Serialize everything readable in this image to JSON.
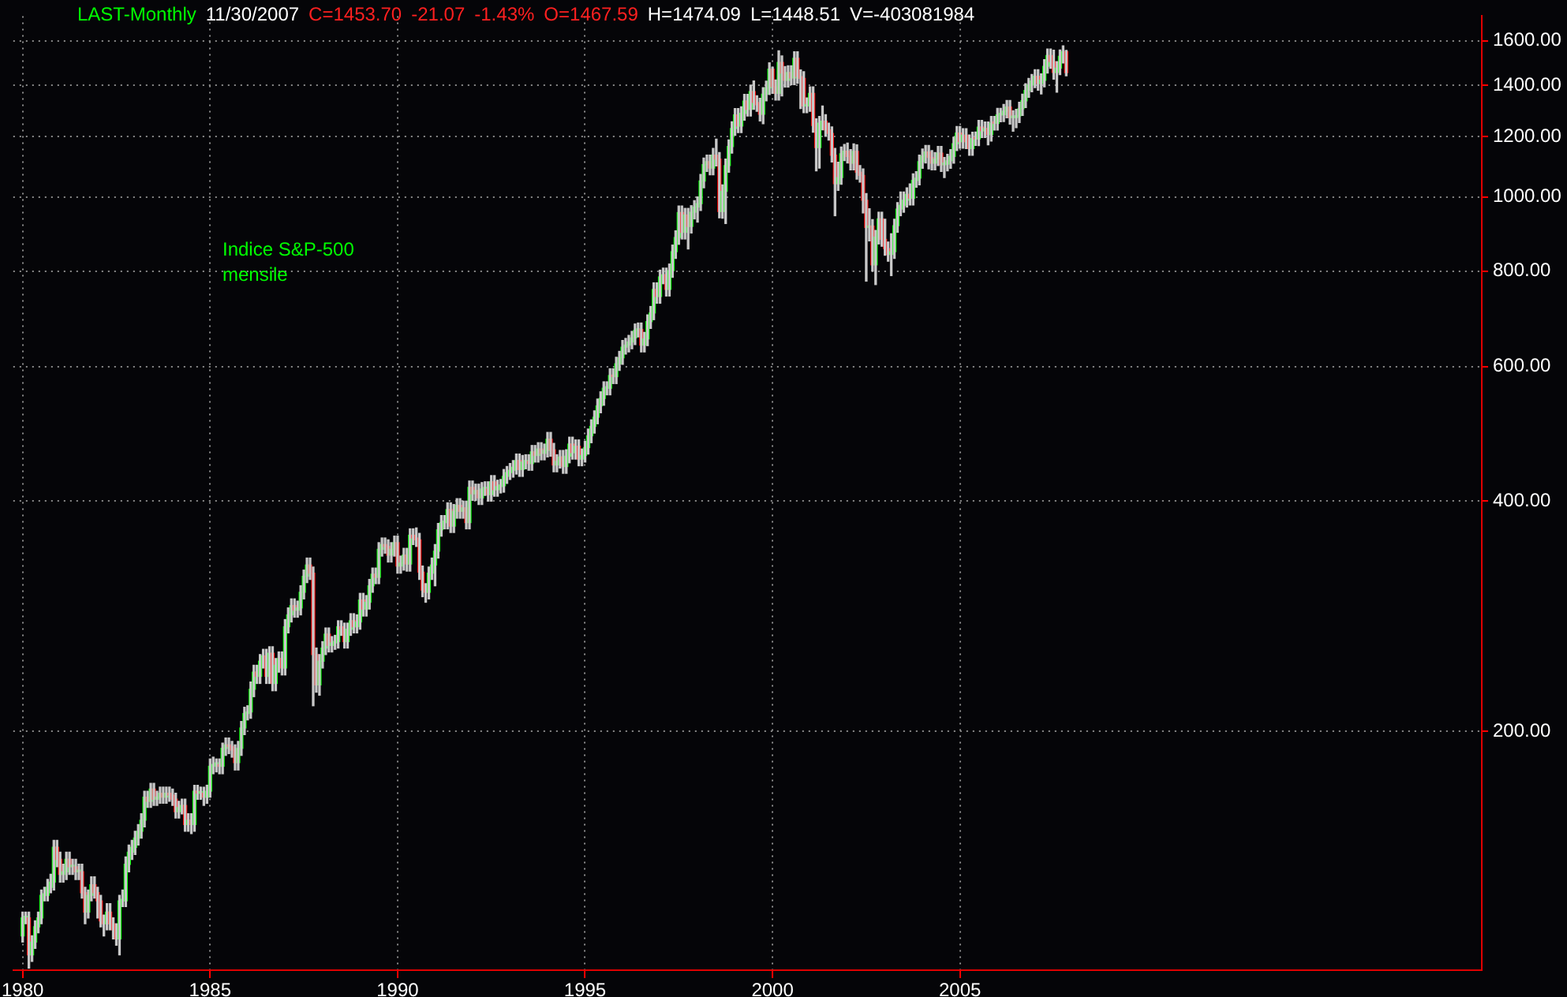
{
  "chart_data": {
    "type": "candlestick",
    "title": "Indice S&P-500\nmensile",
    "annotations": [
      "LAST-Monthly",
      "11/30/2007",
      "C=1453.70",
      "-21.07",
      "-1.43%",
      "O=1467.59",
      "H=1474.09",
      "L=1448.51",
      "V=-403081984"
    ],
    "log": true,
    "grid": true,
    "xlim": [
      "1979-10",
      "2018-12"
    ],
    "xticks": [
      "1980",
      "1985",
      "1990",
      "1995",
      "2000",
      "2005"
    ],
    "ylim": [
      97.4,
      1724
    ],
    "yticks": [
      {
        "value": 200,
        "label": "200.00"
      },
      {
        "value": 400,
        "label": "400.00"
      },
      {
        "value": 600,
        "label": "600.00"
      },
      {
        "value": 800,
        "label": "800.00"
      },
      {
        "value": 1000,
        "label": "1000.00"
      },
      {
        "value": 1200,
        "label": "1200.00"
      },
      {
        "value": 1400,
        "label": "1400.00"
      },
      {
        "value": 1600,
        "label": "1600.00"
      }
    ],
    "x": [
      "1980-01",
      "1980-02",
      "1980-03",
      "1980-04",
      "1980-05",
      "1980-06",
      "1980-07",
      "1980-08",
      "1980-09",
      "1980-10",
      "1980-11",
      "1980-12",
      "1981-01",
      "1981-02",
      "1981-03",
      "1981-04",
      "1981-05",
      "1981-06",
      "1981-07",
      "1981-08",
      "1981-09",
      "1981-10",
      "1981-11",
      "1981-12",
      "1982-01",
      "1982-02",
      "1982-03",
      "1982-04",
      "1982-05",
      "1982-06",
      "1982-07",
      "1982-08",
      "1982-09",
      "1982-10",
      "1982-11",
      "1982-12",
      "1983-01",
      "1983-02",
      "1983-03",
      "1983-04",
      "1983-05",
      "1983-06",
      "1983-07",
      "1983-08",
      "1983-09",
      "1983-10",
      "1983-11",
      "1983-12",
      "1984-01",
      "1984-02",
      "1984-03",
      "1984-04",
      "1984-05",
      "1984-06",
      "1984-07",
      "1984-08",
      "1984-09",
      "1984-10",
      "1984-11",
      "1984-12",
      "1985-01",
      "1985-02",
      "1985-03",
      "1985-04",
      "1985-05",
      "1985-06",
      "1985-07",
      "1985-08",
      "1985-09",
      "1985-10",
      "1985-11",
      "1985-12",
      "1986-01",
      "1986-02",
      "1986-03",
      "1986-04",
      "1986-05",
      "1986-06",
      "1986-07",
      "1986-08",
      "1986-09",
      "1986-10",
      "1986-11",
      "1986-12",
      "1987-01",
      "1987-02",
      "1987-03",
      "1987-04",
      "1987-05",
      "1987-06",
      "1987-07",
      "1987-08",
      "1987-09",
      "1987-10",
      "1987-11",
      "1987-12",
      "1988-01",
      "1988-02",
      "1988-03",
      "1988-04",
      "1988-05",
      "1988-06",
      "1988-07",
      "1988-08",
      "1988-09",
      "1988-10",
      "1988-11",
      "1988-12",
      "1989-01",
      "1989-02",
      "1989-03",
      "1989-04",
      "1989-05",
      "1989-06",
      "1989-07",
      "1989-08",
      "1989-09",
      "1989-10",
      "1989-11",
      "1989-12",
      "1990-01",
      "1990-02",
      "1990-03",
      "1990-04",
      "1990-05",
      "1990-06",
      "1990-07",
      "1990-08",
      "1990-09",
      "1990-10",
      "1990-11",
      "1990-12",
      "1991-01",
      "1991-02",
      "1991-03",
      "1991-04",
      "1991-05",
      "1991-06",
      "1991-07",
      "1991-08",
      "1991-09",
      "1991-10",
      "1991-11",
      "1991-12",
      "1992-01",
      "1992-02",
      "1992-03",
      "1992-04",
      "1992-05",
      "1992-06",
      "1992-07",
      "1992-08",
      "1992-09",
      "1992-10",
      "1992-11",
      "1992-12",
      "1993-01",
      "1993-02",
      "1993-03",
      "1993-04",
      "1993-05",
      "1993-06",
      "1993-07",
      "1993-08",
      "1993-09",
      "1993-10",
      "1993-11",
      "1993-12",
      "1994-01",
      "1994-02",
      "1994-03",
      "1994-04",
      "1994-05",
      "1994-06",
      "1994-07",
      "1994-08",
      "1994-09",
      "1994-10",
      "1994-11",
      "1994-12",
      "1995-01",
      "1995-02",
      "1995-03",
      "1995-04",
      "1995-05",
      "1995-06",
      "1995-07",
      "1995-08",
      "1995-09",
      "1995-10",
      "1995-11",
      "1995-12",
      "1996-01",
      "1996-02",
      "1996-03",
      "1996-04",
      "1996-05",
      "1996-06",
      "1996-07",
      "1996-08",
      "1996-09",
      "1996-10",
      "1996-11",
      "1996-12",
      "1997-01",
      "1997-02",
      "1997-03",
      "1997-04",
      "1997-05",
      "1997-06",
      "1997-07",
      "1997-08",
      "1997-09",
      "1997-10",
      "1997-11",
      "1997-12",
      "1998-01",
      "1998-02",
      "1998-03",
      "1998-04",
      "1998-05",
      "1998-06",
      "1998-07",
      "1998-08",
      "1998-09",
      "1998-10",
      "1998-11",
      "1998-12",
      "1999-01",
      "1999-02",
      "1999-03",
      "1999-04",
      "1999-05",
      "1999-06",
      "1999-07",
      "1999-08",
      "1999-09",
      "1999-10",
      "1999-11",
      "1999-12",
      "2000-01",
      "2000-02",
      "2000-03",
      "2000-04",
      "2000-05",
      "2000-06",
      "2000-07",
      "2000-08",
      "2000-09",
      "2000-10",
      "2000-11",
      "2000-12",
      "2001-01",
      "2001-02",
      "2001-03",
      "2001-04",
      "2001-05",
      "2001-06",
      "2001-07",
      "2001-08",
      "2001-09",
      "2001-10",
      "2001-11",
      "2001-12",
      "2002-01",
      "2002-02",
      "2002-03",
      "2002-04",
      "2002-05",
      "2002-06",
      "2002-07",
      "2002-08",
      "2002-09",
      "2002-10",
      "2002-11",
      "2002-12",
      "2003-01",
      "2003-02",
      "2003-03",
      "2003-04",
      "2003-05",
      "2003-06",
      "2003-07",
      "2003-08",
      "2003-09",
      "2003-10",
      "2003-11",
      "2003-12",
      "2004-01",
      "2004-02",
      "2004-03",
      "2004-04",
      "2004-05",
      "2004-06",
      "2004-07",
      "2004-08",
      "2004-09",
      "2004-10",
      "2004-11",
      "2004-12",
      "2005-01",
      "2005-02",
      "2005-03",
      "2005-04",
      "2005-05",
      "2005-06",
      "2005-07",
      "2005-08",
      "2005-09",
      "2005-10",
      "2005-11",
      "2005-12",
      "2006-01",
      "2006-02",
      "2006-03",
      "2006-04",
      "2006-05",
      "2006-06",
      "2006-07",
      "2006-08",
      "2006-09",
      "2006-10",
      "2006-11",
      "2006-12",
      "2007-01",
      "2007-02",
      "2007-03",
      "2007-04",
      "2007-05",
      "2007-06",
      "2007-07",
      "2007-08",
      "2007-09",
      "2007-10",
      "2007-11"
    ],
    "ohlc": [
      [
        108,
        116,
        106,
        114
      ],
      [
        114,
        116,
        112,
        114
      ],
      [
        114,
        116,
        98,
        102
      ],
      [
        102,
        108,
        100,
        106
      ],
      [
        106,
        113,
        104,
        111
      ],
      [
        111,
        116,
        109,
        114
      ],
      [
        114,
        124,
        112,
        122
      ],
      [
        122,
        125,
        120,
        122
      ],
      [
        122,
        128,
        120,
        125
      ],
      [
        125,
        130,
        123,
        127
      ],
      [
        127,
        144,
        124,
        141
      ],
      [
        141,
        144,
        133,
        136
      ],
      [
        136,
        139,
        127,
        130
      ],
      [
        130,
        134,
        127,
        131
      ],
      [
        131,
        139,
        128,
        136
      ],
      [
        136,
        139,
        130,
        133
      ],
      [
        133,
        136,
        130,
        133
      ],
      [
        133,
        136,
        128,
        131
      ],
      [
        131,
        134,
        128,
        131
      ],
      [
        131,
        134,
        121,
        123
      ],
      [
        123,
        125,
        112,
        116
      ],
      [
        116,
        124,
        114,
        122
      ],
      [
        122,
        129,
        120,
        126
      ],
      [
        126,
        129,
        121,
        123
      ],
      [
        123,
        125,
        114,
        120
      ],
      [
        120,
        122,
        111,
        113
      ],
      [
        113,
        115,
        108,
        112
      ],
      [
        112,
        119,
        110,
        116
      ],
      [
        116,
        119,
        110,
        112
      ],
      [
        112,
        114,
        107,
        110
      ],
      [
        110,
        112,
        105,
        107
      ],
      [
        107,
        122,
        102,
        120
      ],
      [
        120,
        124,
        118,
        120
      ],
      [
        120,
        137,
        118,
        134
      ],
      [
        134,
        142,
        131,
        139
      ],
      [
        139,
        144,
        136,
        141
      ],
      [
        141,
        148,
        138,
        145
      ],
      [
        145,
        151,
        142,
        148
      ],
      [
        148,
        156,
        145,
        153
      ],
      [
        153,
        167,
        150,
        164
      ],
      [
        164,
        167,
        159,
        162
      ],
      [
        162,
        171,
        159,
        168
      ],
      [
        168,
        171,
        160,
        163
      ],
      [
        163,
        167,
        160,
        164
      ],
      [
        164,
        169,
        161,
        166
      ],
      [
        166,
        169,
        161,
        164
      ],
      [
        164,
        169,
        161,
        166
      ],
      [
        166,
        169,
        162,
        165
      ],
      [
        165,
        168,
        160,
        163
      ],
      [
        163,
        166,
        154,
        157
      ],
      [
        157,
        162,
        154,
        159
      ],
      [
        159,
        163,
        156,
        160
      ],
      [
        160,
        163,
        148,
        151
      ],
      [
        151,
        156,
        148,
        153
      ],
      [
        153,
        156,
        147,
        151
      ],
      [
        151,
        170,
        148,
        167
      ],
      [
        167,
        170,
        163,
        166
      ],
      [
        166,
        169,
        163,
        166
      ],
      [
        166,
        169,
        160,
        164
      ],
      [
        164,
        170,
        161,
        167
      ],
      [
        167,
        184,
        164,
        180
      ],
      [
        180,
        185,
        176,
        181
      ],
      [
        181,
        184,
        177,
        181
      ],
      [
        181,
        184,
        176,
        180
      ],
      [
        180,
        193,
        176,
        190
      ],
      [
        190,
        196,
        186,
        192
      ],
      [
        192,
        196,
        187,
        191
      ],
      [
        191,
        194,
        185,
        189
      ],
      [
        189,
        192,
        178,
        182
      ],
      [
        182,
        194,
        178,
        190
      ],
      [
        190,
        206,
        186,
        202
      ],
      [
        202,
        215,
        198,
        211
      ],
      [
        211,
        216,
        207,
        212
      ],
      [
        212,
        232,
        208,
        227
      ],
      [
        227,
        244,
        222,
        239
      ],
      [
        239,
        244,
        231,
        236
      ],
      [
        236,
        252,
        231,
        247
      ],
      [
        247,
        256,
        242,
        251
      ],
      [
        251,
        256,
        231,
        236
      ],
      [
        236,
        258,
        231,
        253
      ],
      [
        253,
        258,
        226,
        231
      ],
      [
        231,
        249,
        226,
        244
      ],
      [
        244,
        254,
        239,
        249
      ],
      [
        249,
        254,
        237,
        242
      ],
      [
        242,
        280,
        237,
        274
      ],
      [
        274,
        290,
        269,
        284
      ],
      [
        284,
        298,
        278,
        292
      ],
      [
        292,
        298,
        282,
        288
      ],
      [
        288,
        296,
        282,
        290
      ],
      [
        290,
        310,
        284,
        304
      ],
      [
        304,
        325,
        298,
        319
      ],
      [
        319,
        337,
        313,
        330
      ],
      [
        330,
        337,
        316,
        322
      ],
      [
        322,
        328,
        216,
        252
      ],
      [
        252,
        257,
        225,
        230
      ],
      [
        230,
        252,
        223,
        247
      ],
      [
        247,
        262,
        242,
        257
      ],
      [
        257,
        273,
        252,
        268
      ],
      [
        268,
        273,
        254,
        259
      ],
      [
        259,
        266,
        254,
        261
      ],
      [
        261,
        267,
        256,
        262
      ],
      [
        262,
        279,
        257,
        274
      ],
      [
        274,
        279,
        267,
        272
      ],
      [
        272,
        277,
        257,
        262
      ],
      [
        262,
        277,
        257,
        272
      ],
      [
        272,
        285,
        267,
        279
      ],
      [
        279,
        285,
        269,
        274
      ],
      [
        274,
        284,
        269,
        278
      ],
      [
        278,
        303,
        272,
        297
      ],
      [
        297,
        303,
        283,
        289
      ],
      [
        289,
        301,
        283,
        295
      ],
      [
        295,
        316,
        289,
        310
      ],
      [
        310,
        327,
        304,
        321
      ],
      [
        321,
        327,
        312,
        318
      ],
      [
        318,
        353,
        312,
        346
      ],
      [
        346,
        358,
        339,
        351
      ],
      [
        351,
        358,
        342,
        349
      ],
      [
        349,
        356,
        333,
        340
      ],
      [
        340,
        353,
        333,
        346
      ],
      [
        346,
        360,
        339,
        353
      ],
      [
        353,
        360,
        322,
        329
      ],
      [
        329,
        339,
        322,
        332
      ],
      [
        332,
        347,
        325,
        340
      ],
      [
        340,
        347,
        324,
        331
      ],
      [
        331,
        368,
        324,
        361
      ],
      [
        361,
        368,
        351,
        358
      ],
      [
        358,
        369,
        349,
        356
      ],
      [
        356,
        363,
        316,
        323
      ],
      [
        323,
        329,
        300,
        306
      ],
      [
        306,
        312,
        295,
        304
      ],
      [
        304,
        328,
        298,
        322
      ],
      [
        322,
        337,
        316,
        330
      ],
      [
        330,
        351,
        310,
        344
      ],
      [
        344,
        374,
        337,
        367
      ],
      [
        367,
        383,
        360,
        375
      ],
      [
        375,
        383,
        368,
        375
      ],
      [
        375,
        398,
        368,
        390
      ],
      [
        390,
        398,
        364,
        371
      ],
      [
        371,
        396,
        364,
        388
      ],
      [
        388,
        403,
        380,
        395
      ],
      [
        395,
        403,
        380,
        388
      ],
      [
        388,
        400,
        380,
        392
      ],
      [
        392,
        400,
        368,
        375
      ],
      [
        375,
        425,
        368,
        417
      ],
      [
        417,
        425,
        401,
        409
      ],
      [
        409,
        421,
        401,
        413
      ],
      [
        413,
        421,
        396,
        404
      ],
      [
        404,
        423,
        396,
        415
      ],
      [
        415,
        424,
        407,
        415
      ],
      [
        415,
        424,
        400,
        408
      ],
      [
        408,
        432,
        400,
        424
      ],
      [
        424,
        432,
        406,
        414
      ],
      [
        414,
        426,
        406,
        418
      ],
      [
        418,
        427,
        410,
        419
      ],
      [
        419,
        440,
        411,
        431
      ],
      [
        431,
        444,
        422,
        436
      ],
      [
        436,
        448,
        427,
        439
      ],
      [
        439,
        452,
        430,
        443
      ],
      [
        443,
        461,
        434,
        452
      ],
      [
        452,
        461,
        431,
        440
      ],
      [
        440,
        459,
        431,
        450
      ],
      [
        450,
        460,
        441,
        451
      ],
      [
        451,
        460,
        439,
        448
      ],
      [
        448,
        473,
        439,
        464
      ],
      [
        464,
        473,
        450,
        459
      ],
      [
        459,
        477,
        450,
        468
      ],
      [
        468,
        477,
        453,
        462
      ],
      [
        462,
        475,
        453,
        466
      ],
      [
        466,
        492,
        457,
        482
      ],
      [
        482,
        492,
        458,
        467
      ],
      [
        467,
        476,
        437,
        446
      ],
      [
        446,
        460,
        437,
        451
      ],
      [
        451,
        466,
        442,
        457
      ],
      [
        457,
        466,
        435,
        444
      ],
      [
        444,
        467,
        435,
        458
      ],
      [
        458,
        485,
        449,
        475
      ],
      [
        475,
        485,
        454,
        463
      ],
      [
        463,
        481,
        454,
        472
      ],
      [
        472,
        481,
        445,
        454
      ],
      [
        454,
        468,
        445,
        459
      ],
      [
        459,
        479,
        450,
        470
      ],
      [
        470,
        497,
        461,
        487
      ],
      [
        487,
        511,
        477,
        501
      ],
      [
        501,
        525,
        491,
        515
      ],
      [
        515,
        544,
        505,
        533
      ],
      [
        533,
        556,
        522,
        545
      ],
      [
        545,
        573,
        534,
        562
      ],
      [
        562,
        573,
        551,
        562
      ],
      [
        562,
        596,
        551,
        584
      ],
      [
        584,
        596,
        570,
        582
      ],
      [
        582,
        617,
        570,
        605
      ],
      [
        605,
        628,
        593,
        616
      ],
      [
        616,
        649,
        604,
        636
      ],
      [
        636,
        653,
        623,
        640
      ],
      [
        640,
        659,
        627,
        646
      ],
      [
        646,
        667,
        633,
        654
      ],
      [
        654,
        682,
        641,
        669
      ],
      [
        669,
        684,
        656,
        671
      ],
      [
        671,
        684,
        627,
        640
      ],
      [
        640,
        665,
        627,
        652
      ],
      [
        652,
        701,
        639,
        687
      ],
      [
        687,
        719,
        673,
        705
      ],
      [
        705,
        772,
        691,
        757
      ],
      [
        757,
        772,
        726,
        741
      ],
      [
        741,
        802,
        726,
        786
      ],
      [
        786,
        807,
        770,
        791
      ],
      [
        791,
        807,
        742,
        757
      ],
      [
        757,
        817,
        742,
        801
      ],
      [
        801,
        865,
        785,
        848
      ],
      [
        848,
        903,
        831,
        885
      ],
      [
        885,
        973,
        867,
        954
      ],
      [
        954,
        973,
        881,
        899
      ],
      [
        899,
        966,
        881,
        947
      ],
      [
        947,
        966,
        855,
        915
      ],
      [
        915,
        974,
        897,
        955
      ],
      [
        955,
        989,
        936,
        970
      ],
      [
        970,
        1000,
        927,
        980
      ],
      [
        980,
        1070,
        960,
        1049
      ],
      [
        1049,
        1124,
        1028,
        1102
      ],
      [
        1102,
        1134,
        1080,
        1112
      ],
      [
        1112,
        1134,
        1069,
        1091
      ],
      [
        1091,
        1157,
        1069,
        1134
      ],
      [
        1134,
        1190,
        1098,
        1121
      ],
      [
        1121,
        1143,
        939,
        957
      ],
      [
        957,
        1037,
        938,
        1017
      ],
      [
        1017,
        1121,
        923,
        1099
      ],
      [
        1099,
        1187,
        1077,
        1164
      ],
      [
        1164,
        1254,
        1141,
        1229
      ],
      [
        1229,
        1305,
        1204,
        1280
      ],
      [
        1280,
        1305,
        1214,
        1238
      ],
      [
        1238,
        1312,
        1214,
        1286
      ],
      [
        1286,
        1362,
        1260,
        1335
      ],
      [
        1335,
        1362,
        1276,
        1302
      ],
      [
        1302,
        1400,
        1276,
        1373
      ],
      [
        1373,
        1418,
        1302,
        1329
      ],
      [
        1329,
        1356,
        1294,
        1320
      ],
      [
        1320,
        1346,
        1257,
        1283
      ],
      [
        1283,
        1390,
        1247,
        1363
      ],
      [
        1363,
        1417,
        1336,
        1389
      ],
      [
        1389,
        1498,
        1361,
        1469
      ],
      [
        1469,
        1478,
        1366,
        1394
      ],
      [
        1394,
        1422,
        1339,
        1366
      ],
      [
        1366,
        1553,
        1339,
        1499
      ],
      [
        1499,
        1529,
        1356,
        1452
      ],
      [
        1452,
        1481,
        1392,
        1421
      ],
      [
        1421,
        1484,
        1392,
        1455
      ],
      [
        1455,
        1484,
        1402,
        1431
      ],
      [
        1431,
        1548,
        1402,
        1518
      ],
      [
        1518,
        1548,
        1408,
        1437
      ],
      [
        1437,
        1466,
        1305,
        1429
      ],
      [
        1429,
        1458,
        1289,
        1315
      ],
      [
        1315,
        1347,
        1289,
        1320
      ],
      [
        1320,
        1393,
        1294,
        1366
      ],
      [
        1366,
        1393,
        1215,
        1240
      ],
      [
        1240,
        1265,
        1082,
        1160
      ],
      [
        1160,
        1274,
        1091,
        1249
      ],
      [
        1249,
        1315,
        1224,
        1256
      ],
      [
        1256,
        1281,
        1200,
        1224
      ],
      [
        1224,
        1249,
        1187,
        1211
      ],
      [
        1211,
        1235,
        1111,
        1134
      ],
      [
        1134,
        1157,
        945,
        1041
      ],
      [
        1041,
        1110,
        1020,
        1060
      ],
      [
        1060,
        1162,
        1039,
        1139
      ],
      [
        1139,
        1171,
        1116,
        1148
      ],
      [
        1148,
        1176,
        1108,
        1130
      ],
      [
        1130,
        1153,
        1085,
        1107
      ],
      [
        1107,
        1173,
        1085,
        1147
      ],
      [
        1147,
        1170,
        1055,
        1077
      ],
      [
        1077,
        1099,
        1046,
        1067
      ],
      [
        1067,
        1088,
        953,
        990
      ],
      [
        990,
        1010,
        776,
        912
      ],
      [
        912,
        965,
        876,
        916
      ],
      [
        916,
        934,
        800,
        815
      ],
      [
        815,
        904,
        768,
        886
      ],
      [
        886,
        955,
        868,
        936
      ],
      [
        936,
        955,
        862,
        880
      ],
      [
        880,
        935,
        839,
        856
      ],
      [
        856,
        873,
        824,
        841
      ],
      [
        841,
        895,
        789,
        848
      ],
      [
        848,
        935,
        831,
        917
      ],
      [
        917,
        983,
        899,
        964
      ],
      [
        964,
        1015,
        945,
        975
      ],
      [
        975,
        1015,
        955,
        990
      ],
      [
        990,
        1028,
        970,
        1008
      ],
      [
        1008,
        1040,
        976,
        996
      ],
      [
        996,
        1072,
        976,
        1051
      ],
      [
        1051,
        1079,
        1030,
        1058
      ],
      [
        1058,
        1134,
        1037,
        1112
      ],
      [
        1112,
        1155,
        1090,
        1131
      ],
      [
        1131,
        1168,
        1108,
        1145
      ],
      [
        1145,
        1168,
        1088,
        1126
      ],
      [
        1126,
        1150,
        1085,
        1107
      ],
      [
        1107,
        1143,
        1085,
        1121
      ],
      [
        1121,
        1164,
        1099,
        1141
      ],
      [
        1141,
        1164,
        1080,
        1102
      ],
      [
        1102,
        1126,
        1060,
        1104
      ],
      [
        1104,
        1137,
        1082,
        1115
      ],
      [
        1115,
        1153,
        1090,
        1130
      ],
      [
        1130,
        1197,
        1107,
        1174
      ],
      [
        1174,
        1236,
        1150,
        1212
      ],
      [
        1212,
        1236,
        1158,
        1181
      ],
      [
        1181,
        1228,
        1158,
        1204
      ],
      [
        1204,
        1228,
        1157,
        1181
      ],
      [
        1181,
        1205,
        1134,
        1157
      ],
      [
        1157,
        1215,
        1134,
        1192
      ],
      [
        1192,
        1216,
        1168,
        1191
      ],
      [
        1191,
        1259,
        1167,
        1234
      ],
      [
        1234,
        1259,
        1196,
        1220
      ],
      [
        1220,
        1253,
        1196,
        1229
      ],
      [
        1229,
        1253,
        1170,
        1207
      ],
      [
        1207,
        1274,
        1183,
        1249
      ],
      [
        1249,
        1274,
        1223,
        1248
      ],
      [
        1248,
        1306,
        1223,
        1280
      ],
      [
        1280,
        1306,
        1254,
        1281
      ],
      [
        1281,
        1321,
        1255,
        1295
      ],
      [
        1295,
        1337,
        1269,
        1311
      ],
      [
        1311,
        1337,
        1245,
        1270
      ],
      [
        1270,
        1296,
        1219,
        1270
      ],
      [
        1270,
        1302,
        1232,
        1277
      ],
      [
        1277,
        1330,
        1251,
        1304
      ],
      [
        1304,
        1363,
        1278,
        1336
      ],
      [
        1336,
        1406,
        1309,
        1378
      ],
      [
        1378,
        1429,
        1350,
        1401
      ],
      [
        1401,
        1446,
        1373,
        1418
      ],
      [
        1418,
        1467,
        1390,
        1438
      ],
      [
        1438,
        1467,
        1379,
        1407
      ],
      [
        1407,
        1449,
        1364,
        1421
      ],
      [
        1421,
        1512,
        1393,
        1482
      ],
      [
        1482,
        1561,
        1452,
        1531
      ],
      [
        1531,
        1561,
        1473,
        1503
      ],
      [
        1503,
        1556,
        1426,
        1455
      ],
      [
        1455,
        1503,
        1371,
        1474
      ],
      [
        1474,
        1557,
        1445,
        1527
      ],
      [
        1527,
        1576,
        1497,
        1549
      ],
      [
        1549,
        1555,
        1440,
        1453.7
      ]
    ]
  }
}
